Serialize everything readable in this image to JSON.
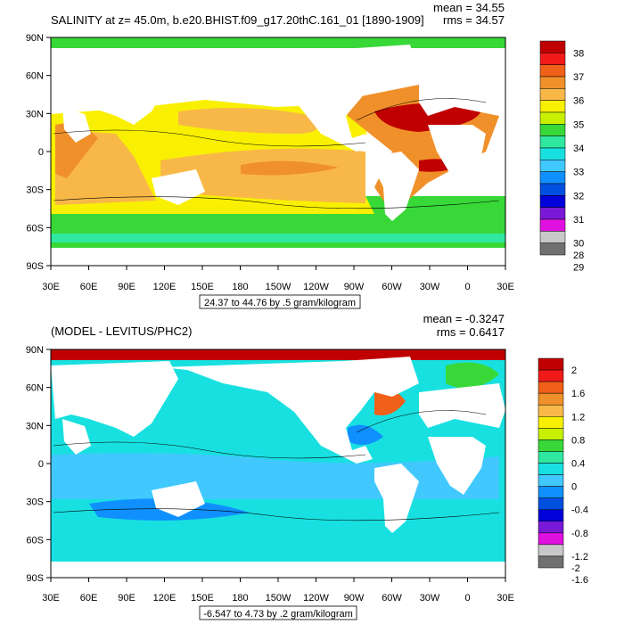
{
  "top": {
    "title": "SALINITY at z=  45.0m, b.e20.BHIST.f09_g17.20thC.161_01 [1890-1909]",
    "mean": "mean = 34.55",
    "rms": "rms = 34.57",
    "contour_info": "24.37 to 44.76 by .5 gram/kilogram",
    "colorbar_labels": [
      "38",
      "37",
      "36",
      "35",
      "34",
      "33",
      "32",
      "31",
      "30",
      "29",
      "28"
    ],
    "colorbar_colors": [
      "#c00000",
      "#f01a1a",
      "#f06018",
      "#f0902a",
      "#f8b848",
      "#f8f000",
      "#c8f000",
      "#38d838",
      "#30e8a0",
      "#18e0e0",
      "#40c8ff",
      "#1090ff",
      "#0050e0",
      "#0000d8",
      "#7a18d8",
      "#e010e0",
      "#c8c8c8",
      "#707070"
    ]
  },
  "bottom": {
    "title": "(MODEL - LEVITUS/PHC2)",
    "mean": "mean = -0.3247",
    "rms": "rms = 0.6417",
    "contour_info": "-6.547 to 4.73 by .2 gram/kilogram",
    "colorbar_labels": [
      "2",
      "1.6",
      "1.2",
      "0.8",
      "0.4",
      "0",
      "-0.4",
      "-0.8",
      "-1.2",
      "-1.6",
      "-2"
    ],
    "colorbar_colors": [
      "#c00000",
      "#f01a1a",
      "#f06018",
      "#f0902a",
      "#f8b848",
      "#f8f000",
      "#c8f000",
      "#38d838",
      "#30e8a0",
      "#18e0e0",
      "#40c8ff",
      "#1090ff",
      "#0050e0",
      "#0000d8",
      "#7a18d8",
      "#e010e0",
      "#c8c8c8",
      "#707070"
    ]
  },
  "axes": {
    "lat_labels": [
      "90N",
      "60N",
      "30N",
      "0",
      "30S",
      "60S",
      "90S"
    ],
    "lon_labels": [
      "30E",
      "60E",
      "90E",
      "120E",
      "150E",
      "180",
      "150W",
      "120W",
      "90W",
      "60W",
      "30W",
      "0",
      "30E"
    ]
  }
}
